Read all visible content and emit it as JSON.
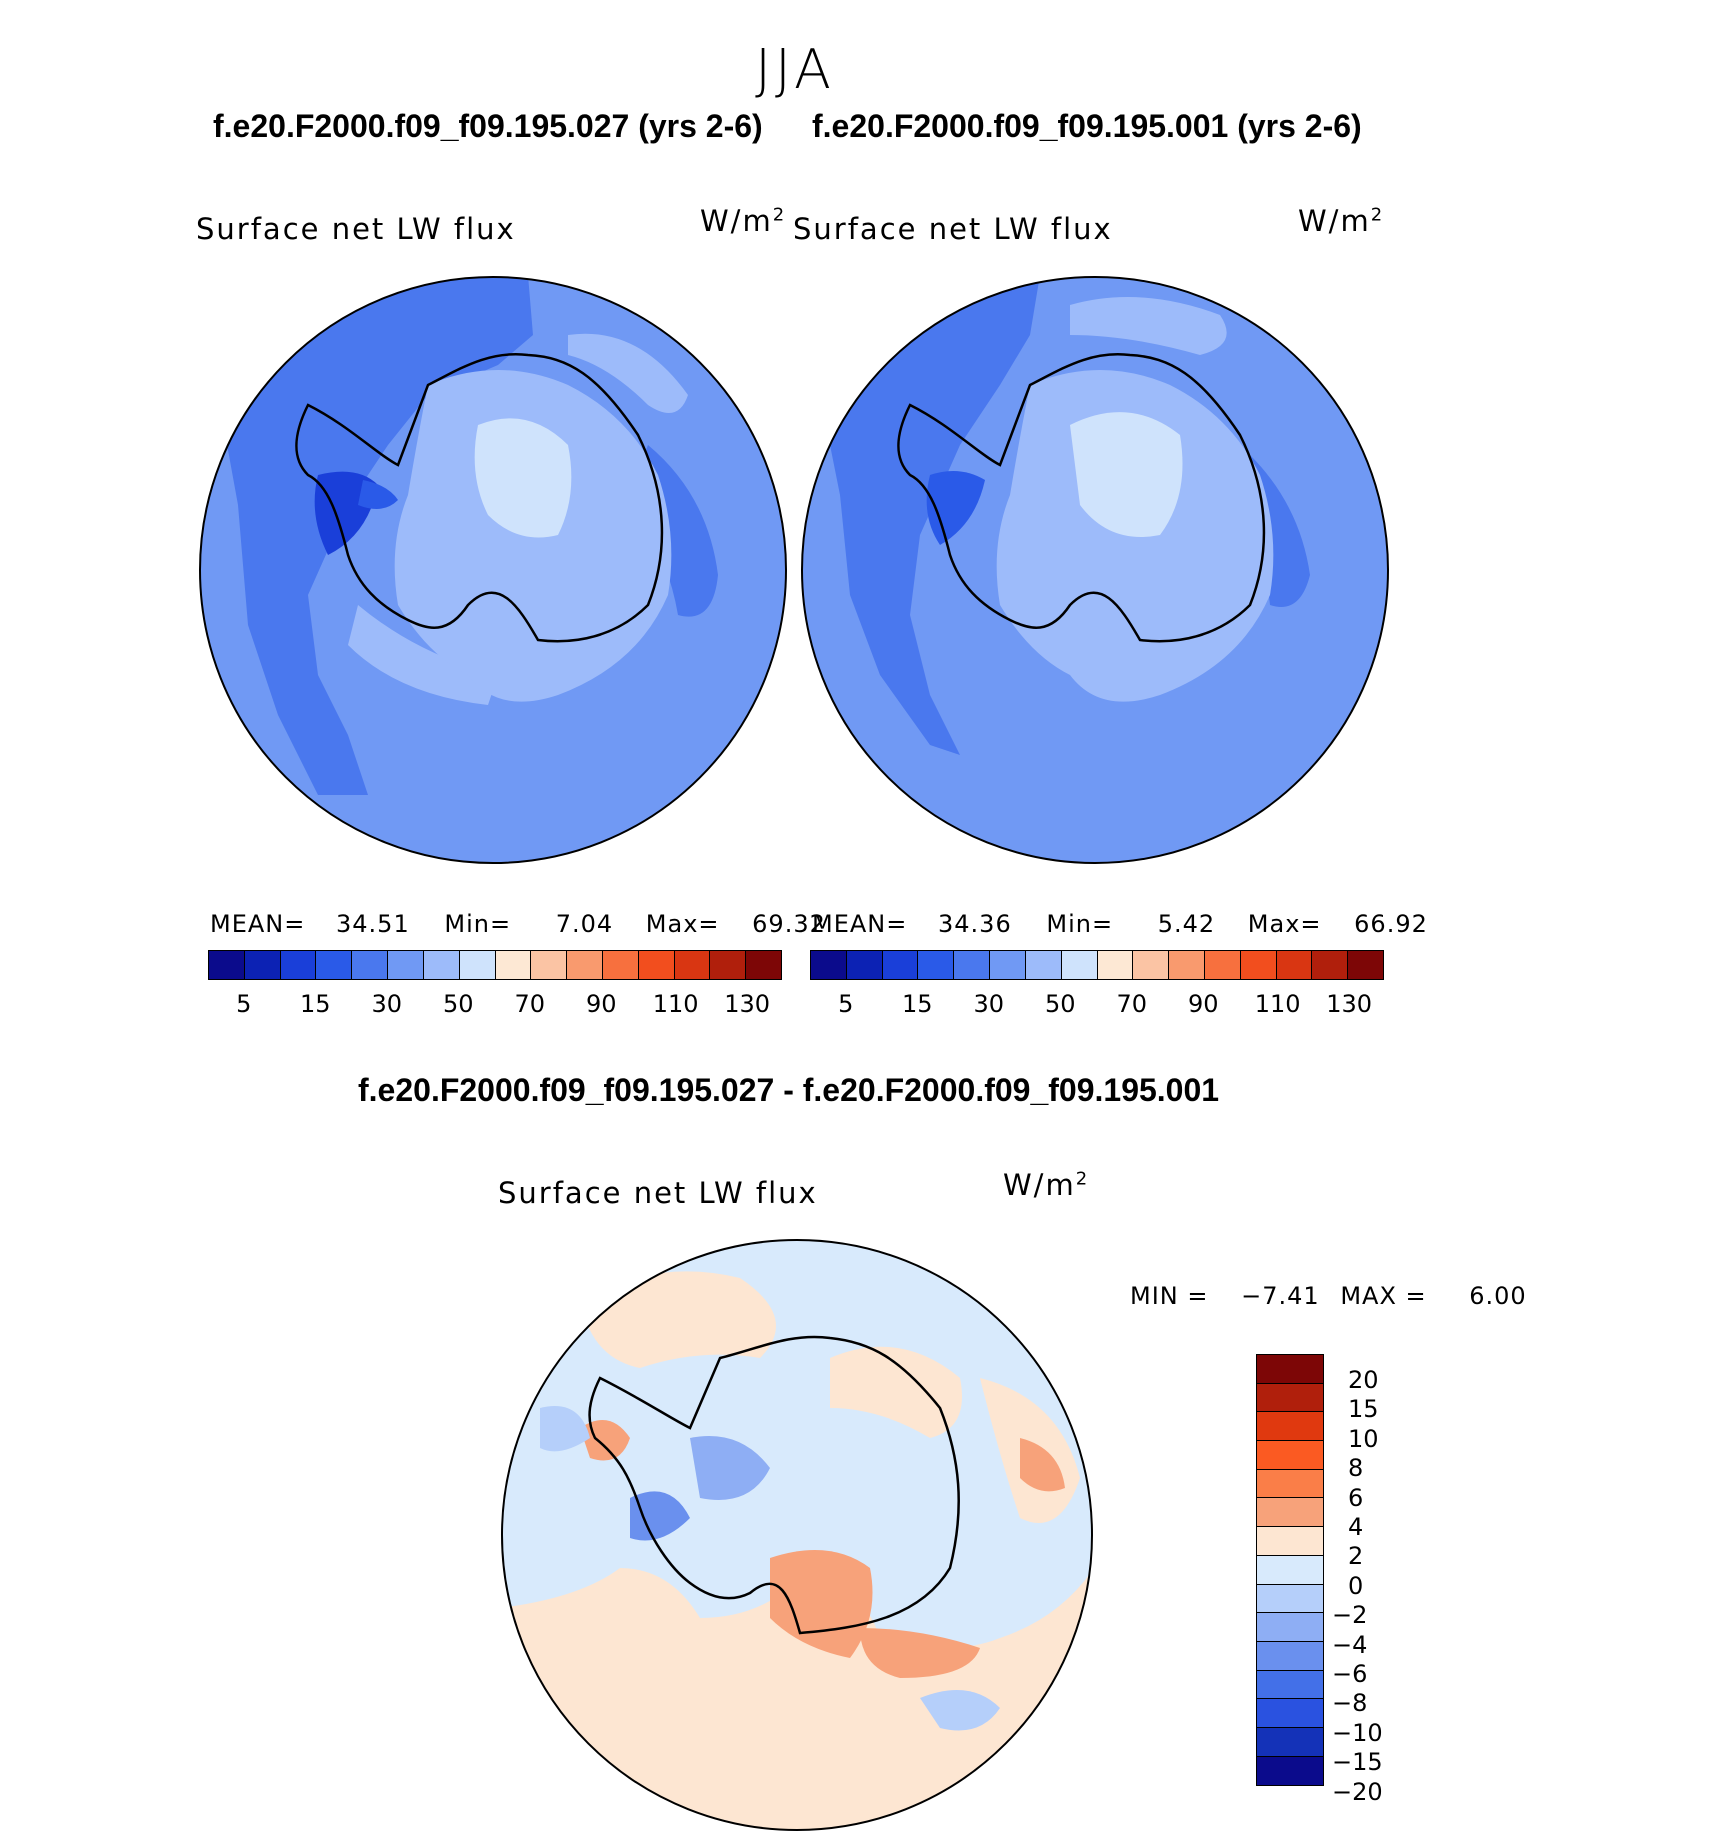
{
  "season": "JJA",
  "panels": [
    {
      "case_title": "f.e20.F2000.f09_f09.195.027 (yrs 2-6)",
      "field": "Surface net LW flux",
      "units_base": "W/m",
      "units_sup": "2",
      "stats": {
        "mean_label": "MEAN=",
        "mean": "34.51",
        "min_label": "Min=",
        "min": "7.04",
        "max_label": "Max=",
        "max": "69.32"
      }
    },
    {
      "case_title": "f.e20.F2000.f09_f09.195.001 (yrs 2-6)",
      "field": "Surface net LW flux",
      "units_base": "W/m",
      "units_sup": "2",
      "stats": {
        "mean_label": "MEAN=",
        "mean": "34.36",
        "min_label": "Min=",
        "min": "5.42",
        "max_label": "Max=",
        "max": "66.92"
      }
    }
  ],
  "colorbar": {
    "colors": [
      "#0b0b8c",
      "#0c22b4",
      "#1a3fd9",
      "#2a5ae8",
      "#4a78ee",
      "#7099f4",
      "#9dbbfa",
      "#cfe3fc",
      "#fde8d4",
      "#fbc4a4",
      "#f99a6e",
      "#f7703e",
      "#f24e1e",
      "#d93612",
      "#b01f0c",
      "#7d0606"
    ],
    "ticks": [
      "5",
      "15",
      "30",
      "50",
      "70",
      "90",
      "110",
      "130"
    ]
  },
  "difference": {
    "title": "f.e20.F2000.f09_f09.195.027 - f.e20.F2000.f09_f09.195.001",
    "field": "Surface net LW flux",
    "units_base": "W/m",
    "units_sup": "2",
    "minmax": {
      "min_label": "MIN =",
      "min": "−7.41",
      "max_label": "MAX =",
      "max": "6.00"
    },
    "colorbar": {
      "colors": [
        "#7d0606",
        "#b01f0c",
        "#e0390f",
        "#fb5a22",
        "#fa7e48",
        "#f7a27a",
        "#fde6d2",
        "#d8eafc",
        "#b5cffa",
        "#8eaef4",
        "#6a90ee",
        "#4370e8",
        "#2a52e0",
        "#1432b8",
        "#0b0b8c"
      ],
      "labels": [
        "20",
        "15",
        "10",
        "8",
        "6",
        "4",
        "2",
        "0",
        "−2",
        "−4",
        "−6",
        "−8",
        "−10",
        "−15",
        "−20"
      ]
    }
  }
}
